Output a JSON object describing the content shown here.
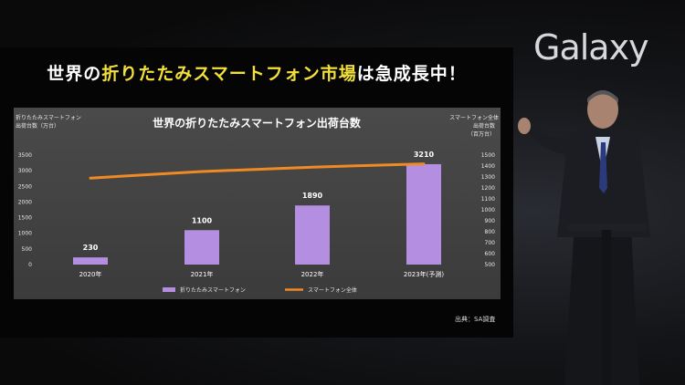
{
  "headline": {
    "prefix": "世界の",
    "highlight": "折りたたみスマートフォン市場",
    "suffix": "は急成長中！"
  },
  "brand": "Galaxy",
  "source": "出典：SA調査",
  "chart_data": {
    "type": "bar",
    "title": "世界の折りたたみスマートフォン出荷台数",
    "left_axis_label_line1": "折りたたみスマートフォン",
    "left_axis_label_line2": "出荷台数（万台）",
    "right_axis_label_line1": "スマートフォン全体",
    "right_axis_label_line2": "出荷台数",
    "right_axis_label_line3": "（百万台）",
    "categories": [
      "2020年",
      "2021年",
      "2022年",
      "2023年(予測)"
    ],
    "series": [
      {
        "name": "折りたたみスマートフォン",
        "type": "bar",
        "axis": "left",
        "color": "#b48ee0",
        "values": [
          230,
          1100,
          1890,
          3210
        ]
      },
      {
        "name": "スマートフォン全体",
        "type": "line",
        "axis": "right",
        "color": "#f08a24",
        "values": [
          1290,
          1350,
          1390,
          1420
        ]
      }
    ],
    "left_ylim": [
      0,
      3500
    ],
    "left_ticks": [
      "0",
      "500",
      "1000",
      "1500",
      "2000",
      "2500",
      "3000",
      "3500"
    ],
    "right_ylim": [
      500,
      1500
    ],
    "right_ticks": [
      "500",
      "600",
      "700",
      "800",
      "900",
      "1000",
      "1100",
      "1200",
      "1300",
      "1400",
      "1500"
    ],
    "legend_position": "bottom",
    "grid": false
  }
}
